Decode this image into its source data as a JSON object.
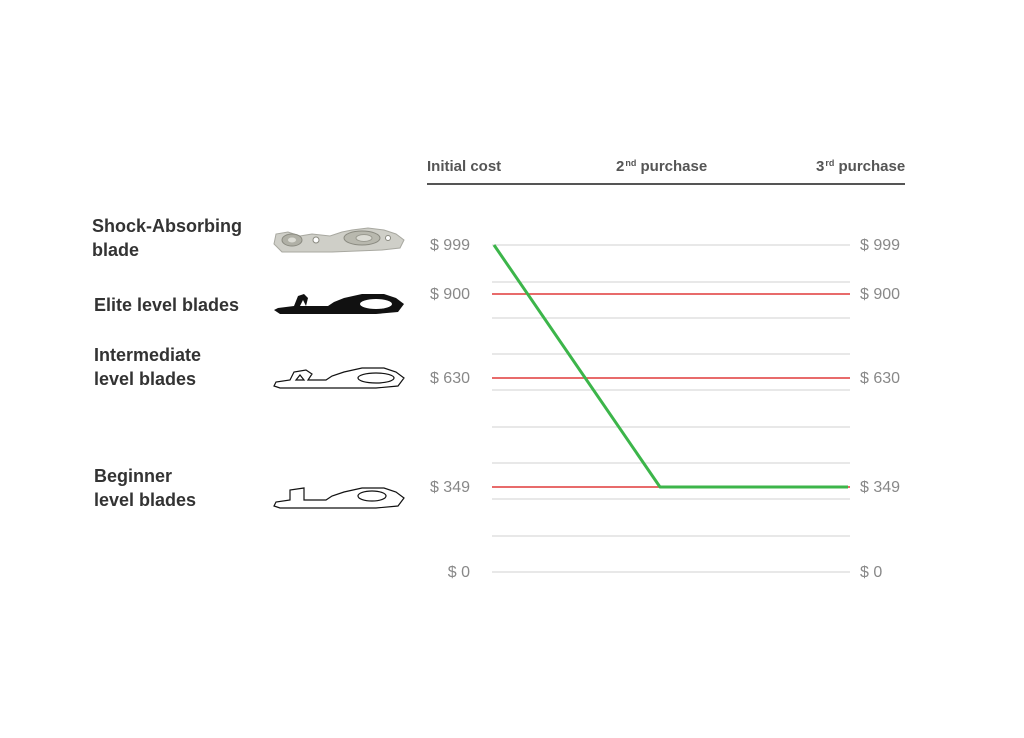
{
  "columns": {
    "initial": "Initial cost",
    "second_num": "2",
    "second_sup": "nd",
    "second_text": "purchase",
    "third_num": "3",
    "third_sup": "rd",
    "third_text": "purchase"
  },
  "blades": [
    {
      "line1": "Shock-Absorbing",
      "line2": "blade",
      "icon": "shock-absorbing-blade-icon"
    },
    {
      "line1": "Elite level blades",
      "line2": "",
      "icon": "elite-blade-icon"
    },
    {
      "line1": "Intermediate",
      "line2": "level blades",
      "icon": "intermediate-blade-icon"
    },
    {
      "line1": "Beginner",
      "line2": "level blades",
      "icon": "beginner-blade-icon"
    }
  ],
  "colors": {
    "line_green": "#3cb54a",
    "line_red": "#e03a3a",
    "grid": "#d0d0d0"
  },
  "chart_data": {
    "type": "line",
    "x": [
      "Initial cost",
      "2nd purchase",
      "3rd purchase"
    ],
    "yticks_left": [
      "$ 999",
      "$ 900",
      "$ 630",
      "$ 349",
      "$ 0"
    ],
    "yticks_right": [
      "$ 999",
      "$ 900",
      "$ 630",
      "$ 349",
      "$ 0"
    ],
    "ytick_values": [
      999,
      900,
      630,
      349,
      0
    ],
    "ylim": [
      0,
      999
    ],
    "series": [
      {
        "values": [
          999,
          349,
          349
        ],
        "color": "#3cb54a"
      },
      {
        "values": [
          900,
          900,
          900
        ],
        "color": "#e03a3a"
      },
      {
        "values": [
          630,
          630,
          630
        ],
        "color": "#e03a3a"
      },
      {
        "values": [
          349,
          349,
          349
        ],
        "color": "#e03a3a"
      }
    ]
  }
}
